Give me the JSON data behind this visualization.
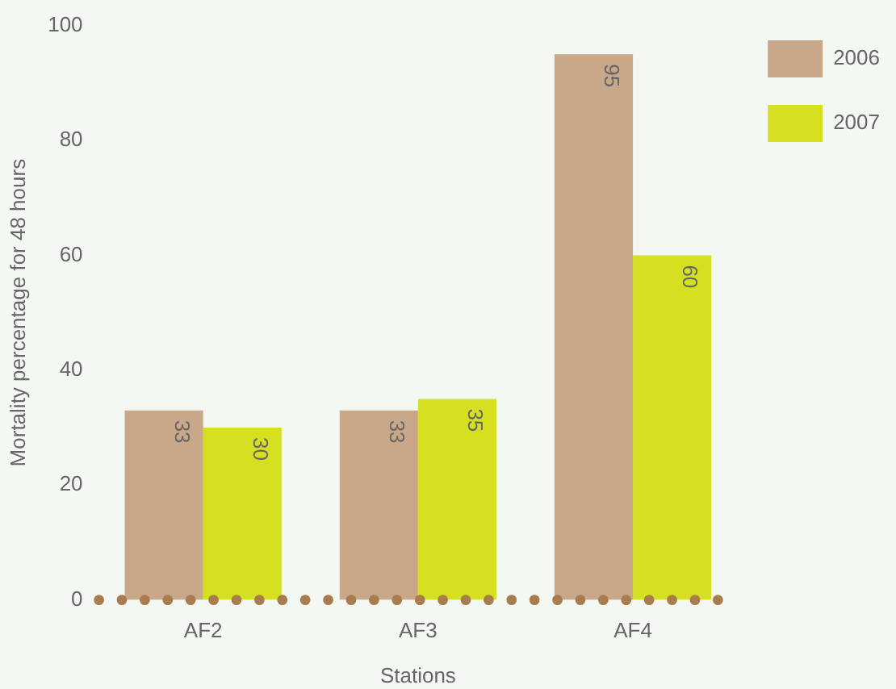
{
  "chart_data": {
    "type": "bar",
    "xlabel": "Stations",
    "ylabel": "Mortality percentage for 48 hours",
    "categories": [
      "AF2",
      "AF3",
      "AF4"
    ],
    "series": [
      {
        "name": "2006",
        "color": "#c8a888",
        "values": [
          33,
          33,
          95
        ]
      },
      {
        "name": "2007",
        "color": "#d6e021",
        "values": [
          30,
          35,
          60
        ]
      }
    ],
    "ref_lines": [
      {
        "axis": "y",
        "value": 0,
        "color": "#a87c4f",
        "line_style": "dotted"
      }
    ],
    "ylim": [
      0,
      100
    ],
    "yticks": [
      0,
      20,
      40,
      60,
      80,
      100
    ],
    "grid": false,
    "legend": "top right",
    "data_labels": true
  }
}
